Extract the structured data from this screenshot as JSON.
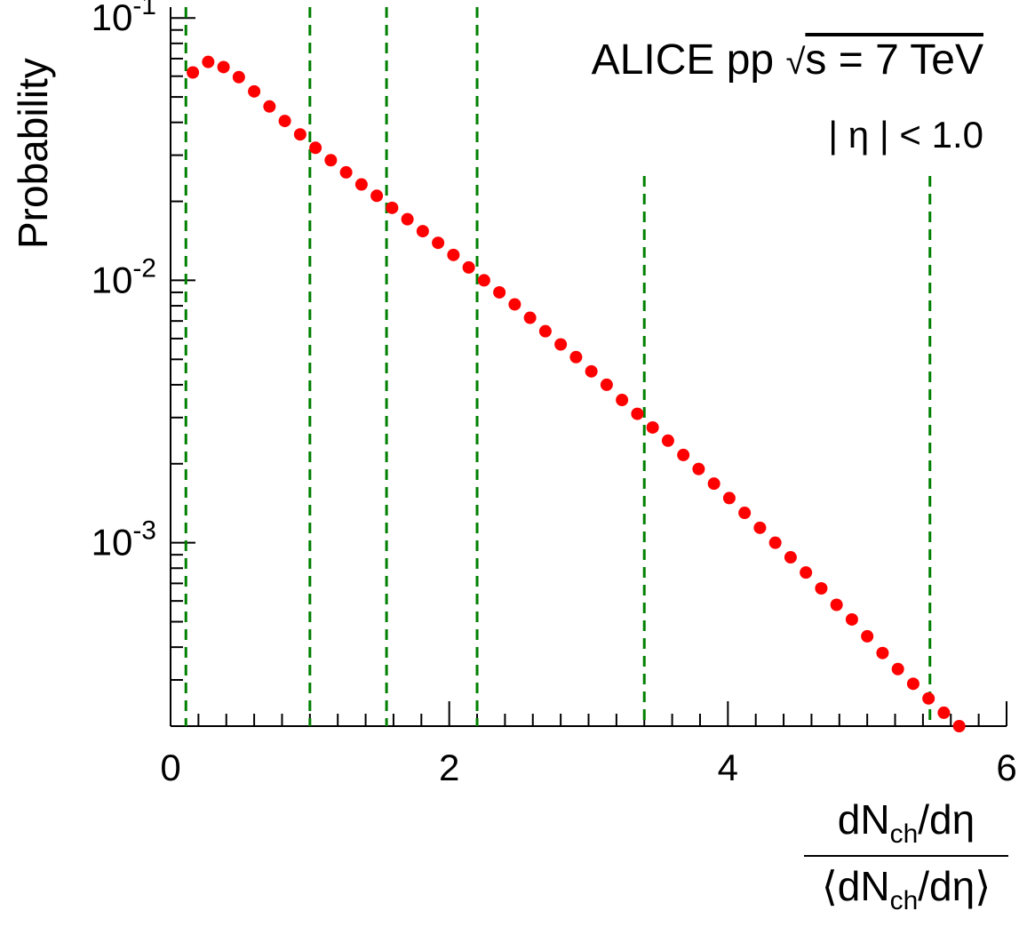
{
  "chart_data": {
    "type": "scatter",
    "title": "ALICE  pp",
    "energy_label": "s = 7 TeV",
    "sqrt_symbol": "√",
    "cut_label": "| η | < 1.0",
    "ylabel": "Probability",
    "xlabel_numerator": "dN",
    "xlabel_num_sub": "ch",
    "xlabel_num_tail": "/dη",
    "xlabel_denominator_open": "⟨dN",
    "xlabel_den_sub": "ch",
    "xlabel_den_tail": "/dη⟩",
    "xlim": [
      0,
      6
    ],
    "ylim": [
      0.0002,
      0.11
    ],
    "yscale": "log",
    "x_ticks": [
      "0",
      "2",
      "4",
      "6"
    ],
    "y_ticks": [
      {
        "base": "10",
        "exp": "-1"
      },
      {
        "base": "10",
        "exp": "-2"
      },
      {
        "base": "10",
        "exp": "-3"
      }
    ],
    "marker_color": "#ff0000",
    "line_color": "#008000",
    "series": [
      {
        "x": [
          0.16,
          0.27,
          0.38,
          0.49,
          0.6,
          0.71,
          0.82,
          0.93,
          1.04,
          1.15,
          1.26,
          1.37,
          1.48,
          1.59,
          1.7,
          1.81,
          1.92,
          2.03,
          2.14,
          2.25,
          2.36,
          2.47,
          2.58,
          2.69,
          2.8,
          2.91,
          3.02,
          3.13,
          3.24,
          3.35,
          3.46,
          3.57,
          3.68,
          3.79,
          3.9,
          4.01,
          4.12,
          4.23,
          4.34,
          4.45,
          4.56,
          4.67,
          4.78,
          4.89,
          5.0,
          5.11,
          5.22,
          5.33,
          5.44,
          5.55,
          5.66
        ],
        "y": [
          0.062,
          0.068,
          0.065,
          0.0595,
          0.0525,
          0.046,
          0.0405,
          0.036,
          0.032,
          0.0287,
          0.0258,
          0.0232,
          0.021,
          0.0189,
          0.0171,
          0.0154,
          0.0139,
          0.0125,
          0.0112,
          0.01,
          0.009,
          0.0081,
          0.0072,
          0.0064,
          0.0057,
          0.0051,
          0.0045,
          0.004,
          0.0035,
          0.0031,
          0.00275,
          0.00245,
          0.00216,
          0.00191,
          0.00168,
          0.00148,
          0.0013,
          0.00114,
          0.001,
          0.00088,
          0.00077,
          0.00067,
          0.00058,
          0.00051,
          0.00044,
          0.00038,
          0.00033,
          0.00029,
          0.000255,
          0.000225,
          0.0002
        ]
      }
    ],
    "dashed_lines": [
      {
        "x": 0.11,
        "y_top": 0.11
      },
      {
        "x": 1.0,
        "y_top": 0.11
      },
      {
        "x": 1.55,
        "y_top": 0.11
      },
      {
        "x": 2.2,
        "y_top": 0.11
      },
      {
        "x": 3.4,
        "y_top": 0.025
      },
      {
        "x": 5.45,
        "y_top": 0.025
      }
    ],
    "grid": false
  }
}
